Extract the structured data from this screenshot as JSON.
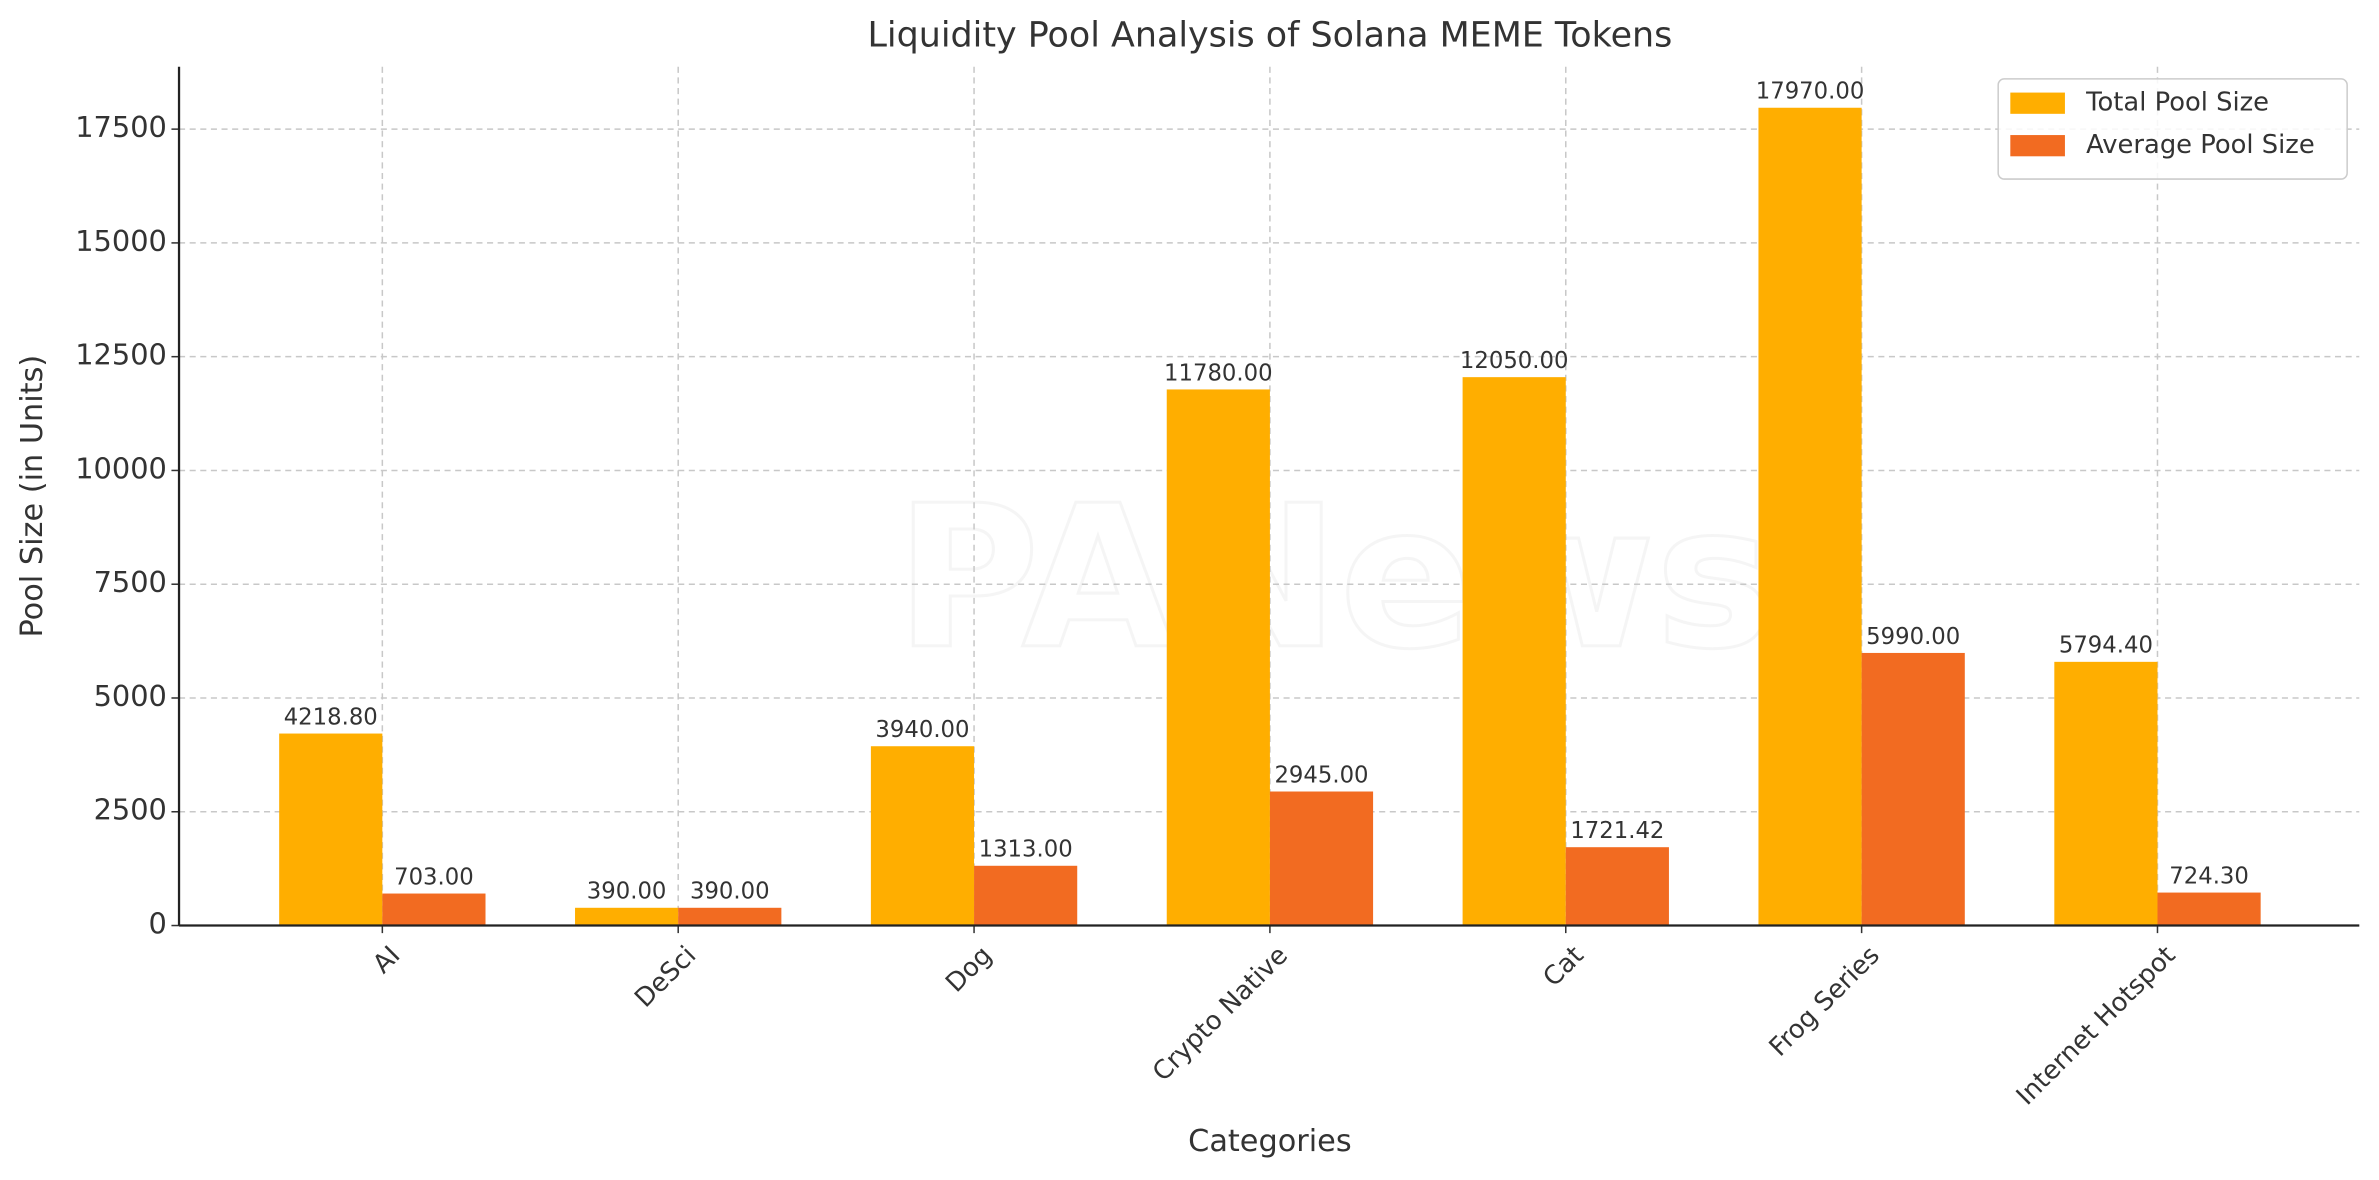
{
  "chart_data": {
    "type": "bar",
    "title": "Liquidity Pool Analysis of Solana MEME Tokens",
    "x_label": "Categories",
    "y_label": "Pool Size (in Units)",
    "watermark": "PANews",
    "categories": [
      "AI",
      "DeSci",
      "Dog",
      "Crypto Native",
      "Cat",
      "Frog Series",
      "Internet Hotspot"
    ],
    "series": [
      {
        "name": "Total Pool Size",
        "color": "#ffae00",
        "values": [
          4218.8,
          390,
          3940,
          11780,
          12050,
          17970,
          5794.4
        ],
        "value_labels": [
          "4218.80",
          "390.00",
          "3940.00",
          "11780.00",
          "12050.00",
          "17970.00",
          "5794.40"
        ]
      },
      {
        "name": "Average Pool Size",
        "color": "#f26b21",
        "values": [
          703,
          390,
          1313,
          2945,
          1721.42,
          5990,
          724.3
        ],
        "value_labels": [
          "703.00",
          "390.00",
          "1313.00",
          "2945.00",
          "1721.42",
          "5990.00",
          "724.30"
        ]
      }
    ],
    "ylim": [
      0,
      18870
    ],
    "yticks": [
      0,
      2500,
      5000,
      7500,
      10000,
      12500,
      15000,
      17500
    ],
    "grid": true,
    "legend": "upper-right"
  }
}
